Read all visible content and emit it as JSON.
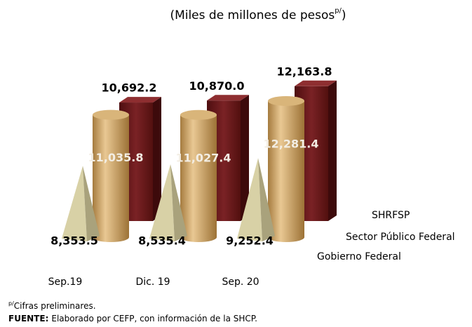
{
  "chart_data": {
    "type": "bar3d",
    "title": "(Miles de millones de pesos",
    "title_sup": "p/",
    "title_end": ")",
    "categories": [
      "Sep.19",
      "Dic. 19",
      "Sep. 20"
    ],
    "series": [
      {
        "name": "SHRFSP",
        "color": "#6b1a1c",
        "shape": "box",
        "values": [
          10692.2,
          10870.0,
          12163.8
        ],
        "value_labels": [
          "10,692.2",
          "10,870.0",
          "12,163.8"
        ]
      },
      {
        "name": "Sector Público Federal",
        "color": "#c9a063",
        "shape": "cylinder",
        "values": [
          11035.8,
          11027.4,
          12281.4
        ],
        "value_labels": [
          "11,035.8",
          "11,027.4",
          "12,281.4"
        ]
      },
      {
        "name": "Gobierno Federal",
        "color": "#d8d1a6",
        "shape": "pyramid",
        "values": [
          8353.5,
          8535.4,
          9252.4
        ],
        "value_labels": [
          "8,353.5",
          "8,535.4",
          "9,252.4"
        ]
      }
    ],
    "note_sup": "p/",
    "note": "Cifras preliminares.",
    "source_label": "FUENTE:",
    "source": "Elaborado por CEFP, con información de la SHCP."
  }
}
